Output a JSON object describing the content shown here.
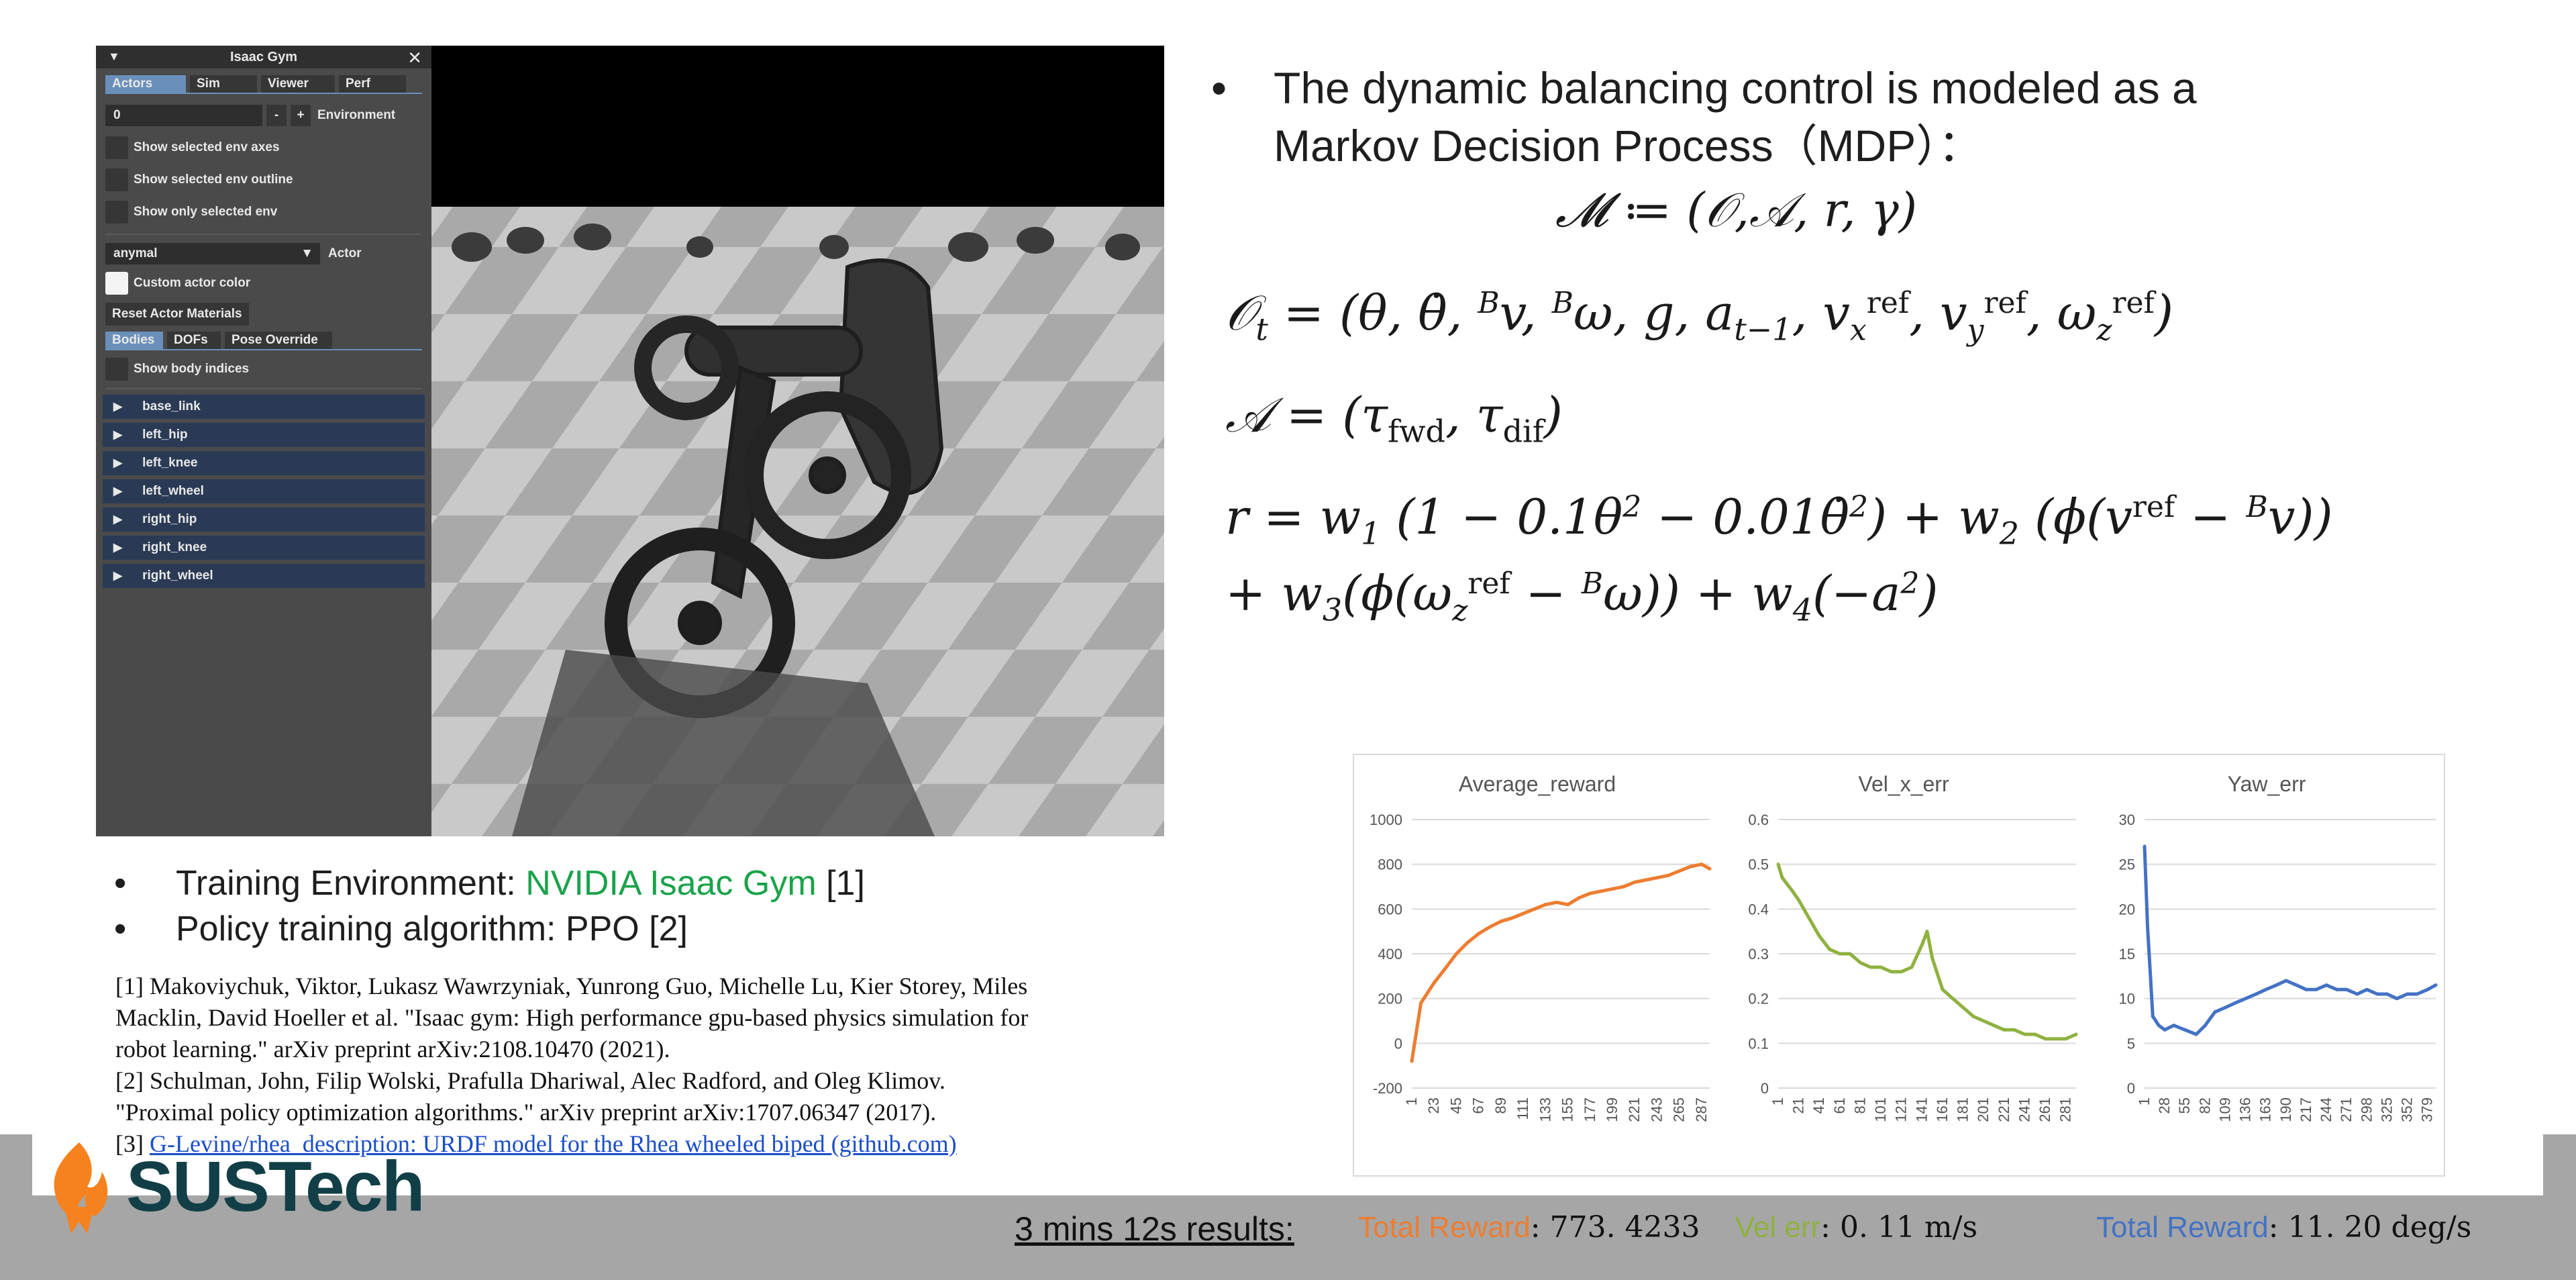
{
  "sim_window": {
    "panel_title": "Isaac Gym",
    "tabs": [
      "Actors",
      "Sim",
      "Viewer",
      "Perf"
    ],
    "env_index": "0",
    "minus": "-",
    "plus": "+",
    "env_label": "Environment",
    "options": [
      "Show selected env axes",
      "Show selected env outline",
      "Show only selected env"
    ],
    "actor_select": "anymal",
    "actor_label": "Actor",
    "custom_color": "Custom actor color",
    "reset_materials": "Reset Actor Materials",
    "subtabs": [
      "Bodies",
      "DOFs",
      "Pose Override"
    ],
    "show_body_indices": "Show body indices",
    "bodies": [
      "base_link",
      "left_hip",
      "left_knee",
      "left_wheel",
      "right_hip",
      "right_knee",
      "right_wheel"
    ]
  },
  "right_text": {
    "bullet": "•",
    "line1": "The dynamic balancing control is modeled as a",
    "line2": "Markov Decision Process（MDP）："
  },
  "bottom_left": {
    "bullet": "•",
    "env_prefix": "Training Environment: ",
    "env_name": "NVIDIA Isaac Gym",
    "env_ref": " [1]",
    "algo": "Policy training algorithm: PPO [2]",
    "refs": [
      "[1] Makoviychuk, Viktor, Lukasz Wawrzyniak, Yunrong Guo, Michelle Lu, Kier Storey, Miles",
      "Macklin, David Hoeller et al. \"Isaac gym: High performance gpu-based physics simulation for",
      "robot learning.\" arXiv preprint arXiv:2108.10470 (2021).",
      "[2] Schulman, John, Filip Wolski, Prafulla Dhariwal, Alec Radford, and Oleg Klimov.",
      "\"Proximal policy optimization algorithms.\" arXiv preprint arXiv:1707.06347 (2017)."
    ],
    "ref3_prefix": "[3] ",
    "ref3_link": "G-Levine/rhea_description: URDF model for the Rhea wheeled biped (github.com)"
  },
  "logo": {
    "text": "SUSTech"
  },
  "footer": {
    "results_label": "3 mins 12s results:",
    "r1_label": "Total Reward",
    "r1_value": ": 773. 4233",
    "r2_label": "Vel err",
    "r2_value": ": 0. 11  m/s",
    "r3_label": "Total Reward",
    "r3_value": ": 11. 20  deg/s"
  },
  "colors": {
    "orange": "#ED7D31",
    "green": "#8FB140",
    "blue": "#4472C4",
    "footer_gray": "#A6A6A6"
  },
  "chart_data": [
    {
      "type": "line",
      "title": "Average_reward",
      "ylim": [
        -200,
        1000
      ],
      "yticks": [
        -200,
        0,
        200,
        400,
        600,
        800,
        1000
      ],
      "xticks": [
        1,
        23,
        45,
        67,
        89,
        111,
        133,
        155,
        177,
        199,
        221,
        243,
        265,
        287
      ],
      "x": [
        1,
        10,
        23,
        35,
        45,
        56,
        67,
        78,
        89,
        100,
        111,
        122,
        133,
        144,
        155,
        166,
        177,
        188,
        199,
        210,
        221,
        232,
        243,
        254,
        265,
        276,
        287,
        295
      ],
      "series": [
        {
          "values": [
            -80,
            180,
            270,
            340,
            400,
            450,
            490,
            520,
            545,
            560,
            580,
            600,
            620,
            630,
            620,
            650,
            670,
            680,
            690,
            700,
            720,
            730,
            740,
            750,
            770,
            790,
            800,
            780
          ],
          "color": "#ED7D31"
        }
      ],
      "grid": true
    },
    {
      "type": "line",
      "title": "Vel_x_err",
      "ylim": [
        0,
        0.6
      ],
      "yticks": [
        0,
        0.1,
        0.2,
        0.3,
        0.4,
        0.5,
        0.6
      ],
      "xticks": [
        1,
        21,
        41,
        61,
        81,
        101,
        121,
        141,
        161,
        181,
        201,
        221,
        241,
        261,
        281
      ],
      "x": [
        1,
        5,
        15,
        21,
        31,
        41,
        51,
        61,
        71,
        81,
        91,
        101,
        111,
        121,
        131,
        141,
        146,
        151,
        161,
        171,
        181,
        191,
        201,
        211,
        221,
        231,
        241,
        251,
        261,
        271,
        281,
        291
      ],
      "series": [
        {
          "values": [
            0.5,
            0.47,
            0.44,
            0.42,
            0.38,
            0.34,
            0.31,
            0.3,
            0.3,
            0.28,
            0.27,
            0.27,
            0.26,
            0.26,
            0.27,
            0.32,
            0.35,
            0.29,
            0.22,
            0.2,
            0.18,
            0.16,
            0.15,
            0.14,
            0.13,
            0.13,
            0.12,
            0.12,
            0.11,
            0.11,
            0.11,
            0.12
          ],
          "color": "#8FB140"
        }
      ],
      "grid": true
    },
    {
      "type": "line",
      "title": "Yaw_err",
      "ylim": [
        0,
        30
      ],
      "yticks": [
        0,
        5,
        10,
        15,
        20,
        25,
        30
      ],
      "xticks": [
        1,
        28,
        55,
        82,
        109,
        136,
        163,
        190,
        217,
        244,
        271,
        298,
        325,
        352,
        379
      ],
      "x": [
        1,
        5,
        12,
        20,
        28,
        40,
        55,
        70,
        82,
        95,
        109,
        122,
        136,
        150,
        163,
        177,
        190,
        204,
        217,
        230,
        244,
        258,
        271,
        285,
        298,
        312,
        325,
        338,
        352,
        365,
        379,
        390
      ],
      "series": [
        {
          "values": [
            27,
            18,
            8,
            7,
            6.5,
            7,
            6.5,
            6,
            7,
            8.5,
            9,
            9.5,
            10,
            10.5,
            11,
            11.5,
            12,
            11.5,
            11,
            11,
            11.5,
            11,
            11,
            10.5,
            11,
            10.5,
            10.5,
            10,
            10.5,
            10.5,
            11,
            11.5
          ],
          "color": "#4472C4"
        }
      ],
      "grid": true
    }
  ]
}
